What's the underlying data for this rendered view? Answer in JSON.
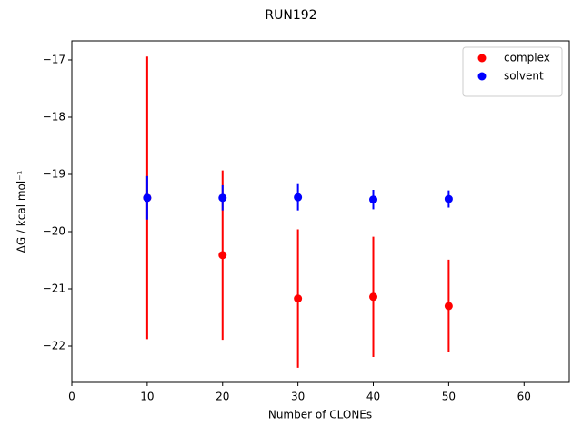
{
  "chart_data": {
    "type": "scatter",
    "title": "RUN192",
    "xlabel": "Number of CLONEs",
    "ylabel": "ΔG / kcal mol⁻¹",
    "x": [
      10,
      20,
      30,
      40,
      50
    ],
    "series": [
      {
        "name": "complex",
        "color": "#ff0000",
        "values": [
          -19.41,
          -20.41,
          -21.17,
          -21.14,
          -21.3
        ],
        "errors": [
          2.47,
          1.48,
          1.21,
          1.05,
          0.81
        ]
      },
      {
        "name": "solvent",
        "color": "#0000ff",
        "values": [
          -19.41,
          -19.41,
          -19.4,
          -19.44,
          -19.43
        ],
        "errors": [
          0.38,
          0.22,
          0.23,
          0.17,
          0.15
        ]
      }
    ],
    "xlim": [
      0,
      66
    ],
    "xticks": [
      0,
      10,
      20,
      30,
      40,
      50,
      60
    ],
    "ylim": [
      -22.635,
      -16.667
    ],
    "yticks": [
      {
        "value": -17,
        "label": "−17"
      },
      {
        "value": -18,
        "label": "−18"
      },
      {
        "value": -19,
        "label": "−19"
      },
      {
        "value": -20,
        "label": "−20"
      },
      {
        "value": -21,
        "label": "−21"
      },
      {
        "value": -22,
        "label": "−22"
      }
    ],
    "legend": "upper right"
  }
}
